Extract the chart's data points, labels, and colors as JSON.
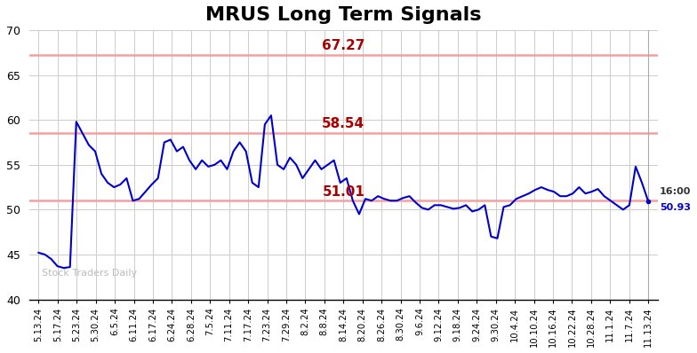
{
  "title": "MRUS Long Term Signals",
  "title_fontsize": 16,
  "title_fontweight": "bold",
  "line_color": "#0000cc",
  "line_width": 1.5,
  "background_color": "#ffffff",
  "grid_color": "#cccccc",
  "hlines": [
    67.27,
    58.54,
    51.01
  ],
  "hline_color": "#f5a0a0",
  "hline_label_color": "#aa0000",
  "hline_label_fontsize": 11,
  "hline_label_fontweight": "bold",
  "ylim": [
    40,
    70
  ],
  "yticks": [
    40,
    45,
    50,
    55,
    60,
    65,
    70
  ],
  "watermark": "Stock Traders Daily",
  "watermark_color": "#bbbbbb",
  "last_price": 50.93,
  "last_label_color": "#0000cc",
  "xtick_labels": [
    "5.13.24",
    "5.17.24",
    "5.23.24",
    "5.30.24",
    "6.5.24",
    "6.11.24",
    "6.17.24",
    "6.24.24",
    "6.28.24",
    "7.5.24",
    "7.11.24",
    "7.17.24",
    "7.23.24",
    "7.29.24",
    "8.2.24",
    "8.8.24",
    "8.14.24",
    "8.20.24",
    "8.26.24",
    "8.30.24",
    "9.6.24",
    "9.12.24",
    "9.18.24",
    "9.24.24",
    "9.30.24",
    "10.4.24",
    "10.10.24",
    "10.16.24",
    "10.22.24",
    "10.28.24",
    "11.1.24",
    "11.7.24",
    "11.13.24"
  ],
  "price_data": [
    45.2,
    45.0,
    44.5,
    43.7,
    43.5,
    43.6,
    59.8,
    58.5,
    57.2,
    56.5,
    54.0,
    53.0,
    52.5,
    52.8,
    53.5,
    51.0,
    51.2,
    52.0,
    52.8,
    53.5,
    57.5,
    57.8,
    56.5,
    57.0,
    55.5,
    54.5,
    55.5,
    54.8,
    55.0,
    55.5,
    54.5,
    56.5,
    57.5,
    56.5,
    53.0,
    52.5,
    59.5,
    60.5,
    55.0,
    54.5,
    55.8,
    55.0,
    53.5,
    54.5,
    55.5,
    54.5,
    55.0,
    55.5,
    53.0,
    53.5,
    51.0,
    49.5,
    51.2,
    51.0,
    51.5,
    51.2,
    51.0,
    51.0,
    51.3,
    51.5,
    50.8,
    50.2,
    50.0,
    50.5,
    50.5,
    50.3,
    50.1,
    50.2,
    50.5,
    49.8,
    50.0,
    50.5,
    47.0,
    46.8,
    50.3,
    50.5,
    51.2,
    51.5,
    51.8,
    52.2,
    52.5,
    52.2,
    52.0,
    51.5,
    51.5,
    51.8,
    52.5,
    51.8,
    52.0,
    52.3,
    51.5,
    51.0,
    50.5,
    50.0,
    50.5,
    54.8,
    53.0,
    50.93
  ]
}
